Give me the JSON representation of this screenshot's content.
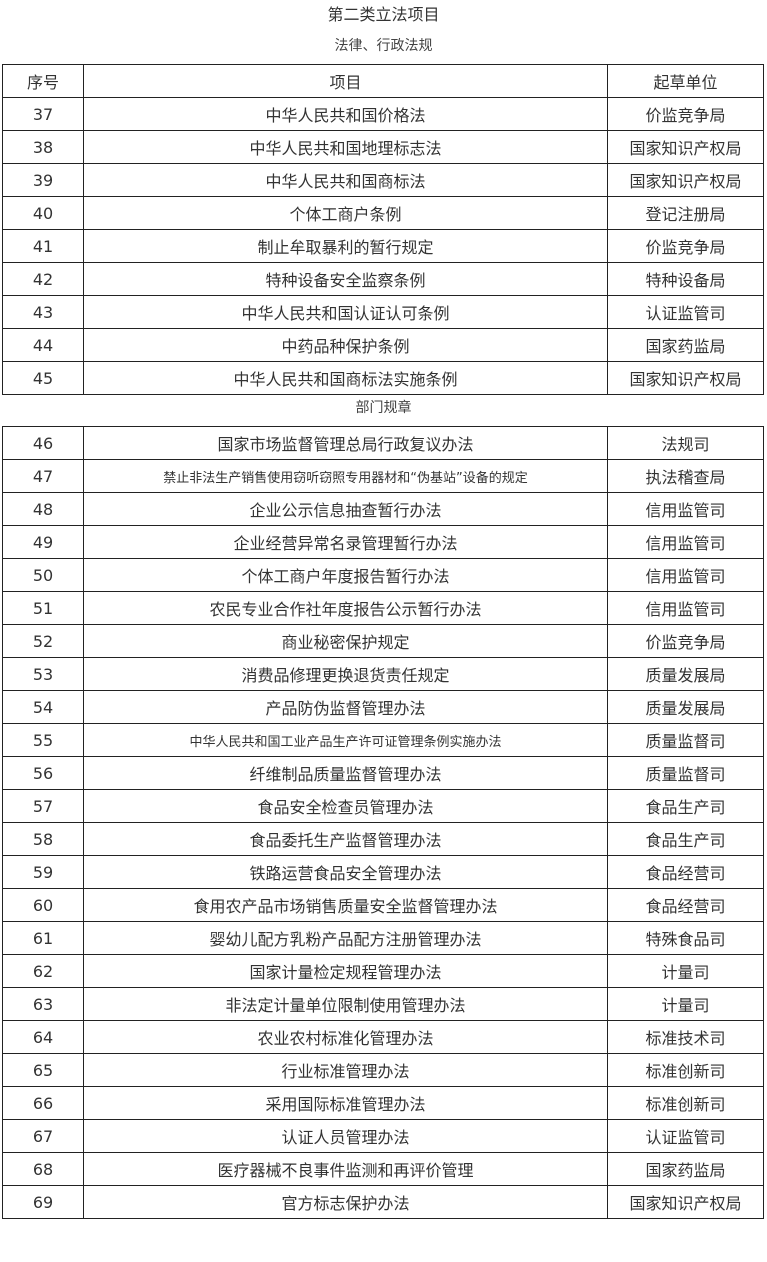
{
  "title": "第二类立法项目",
  "section1": {
    "label": "法律、行政法规",
    "header": [
      "序号",
      "项目",
      "起草单位"
    ],
    "rows": [
      [
        "37",
        "中华人民共和国价格法",
        "价监竞争局"
      ],
      [
        "38",
        "中华人民共和国地理标志法",
        "国家知识产权局"
      ],
      [
        "39",
        "中华人民共和国商标法",
        "国家知识产权局"
      ],
      [
        "40",
        "个体工商户条例",
        "登记注册局"
      ],
      [
        "41",
        "制止牟取暴利的暂行规定",
        "价监竞争局"
      ],
      [
        "42",
        "特种设备安全监察条例",
        "特种设备局"
      ],
      [
        "43",
        "中华人民共和国认证认可条例",
        "认证监管司"
      ],
      [
        "44",
        "中药品种保护条例",
        "国家药监局"
      ],
      [
        "45",
        "中华人民共和国商标法实施条例",
        "国家知识产权局"
      ]
    ]
  },
  "section2": {
    "label": "部门规章",
    "rows": [
      [
        "46",
        "国家市场监督管理总局行政复议办法",
        "法规司"
      ],
      [
        "47",
        "禁止非法生产销售使用窃听窃照专用器材和“伪基站”设备的规定",
        "执法稽查局"
      ],
      [
        "48",
        "企业公示信息抽查暂行办法",
        "信用监管司"
      ],
      [
        "49",
        "企业经营异常名录管理暂行办法",
        "信用监管司"
      ],
      [
        "50",
        "个体工商户年度报告暂行办法",
        "信用监管司"
      ],
      [
        "51",
        "农民专业合作社年度报告公示暂行办法",
        "信用监管司"
      ],
      [
        "52",
        "商业秘密保护规定",
        "价监竞争局"
      ],
      [
        "53",
        "消费品修理更换退货责任规定",
        "质量发展局"
      ],
      [
        "54",
        "产品防伪监督管理办法",
        "质量发展局"
      ],
      [
        "55",
        "中华人民共和国工业产品生产许可证管理条例实施办法",
        "质量监督司"
      ],
      [
        "56",
        "纤维制品质量监督管理办法",
        "质量监督司"
      ],
      [
        "57",
        "食品安全检查员管理办法",
        "食品生产司"
      ],
      [
        "58",
        "食品委托生产监督管理办法",
        "食品生产司"
      ],
      [
        "59",
        "铁路运营食品安全管理办法",
        "食品经营司"
      ],
      [
        "60",
        "食用农产品市场销售质量安全监督管理办法",
        "食品经营司"
      ],
      [
        "61",
        "婴幼儿配方乳粉产品配方注册管理办法",
        "特殊食品司"
      ],
      [
        "62",
        "国家计量检定规程管理办法",
        "计量司"
      ],
      [
        "63",
        "非法定计量单位限制使用管理办法",
        "计量司"
      ],
      [
        "64",
        "农业农村标准化管理办法",
        "标准技术司"
      ],
      [
        "65",
        "行业标准管理办法",
        "标准创新司"
      ],
      [
        "66",
        "采用国际标准管理办法",
        "标准创新司"
      ],
      [
        "67",
        "认证人员管理办法",
        "认证监管司"
      ],
      [
        "68",
        "医疗器械不良事件监测和再评价管理",
        "国家药监局"
      ],
      [
        "69",
        "官方标志保护办法",
        "国家知识产权局"
      ]
    ]
  }
}
